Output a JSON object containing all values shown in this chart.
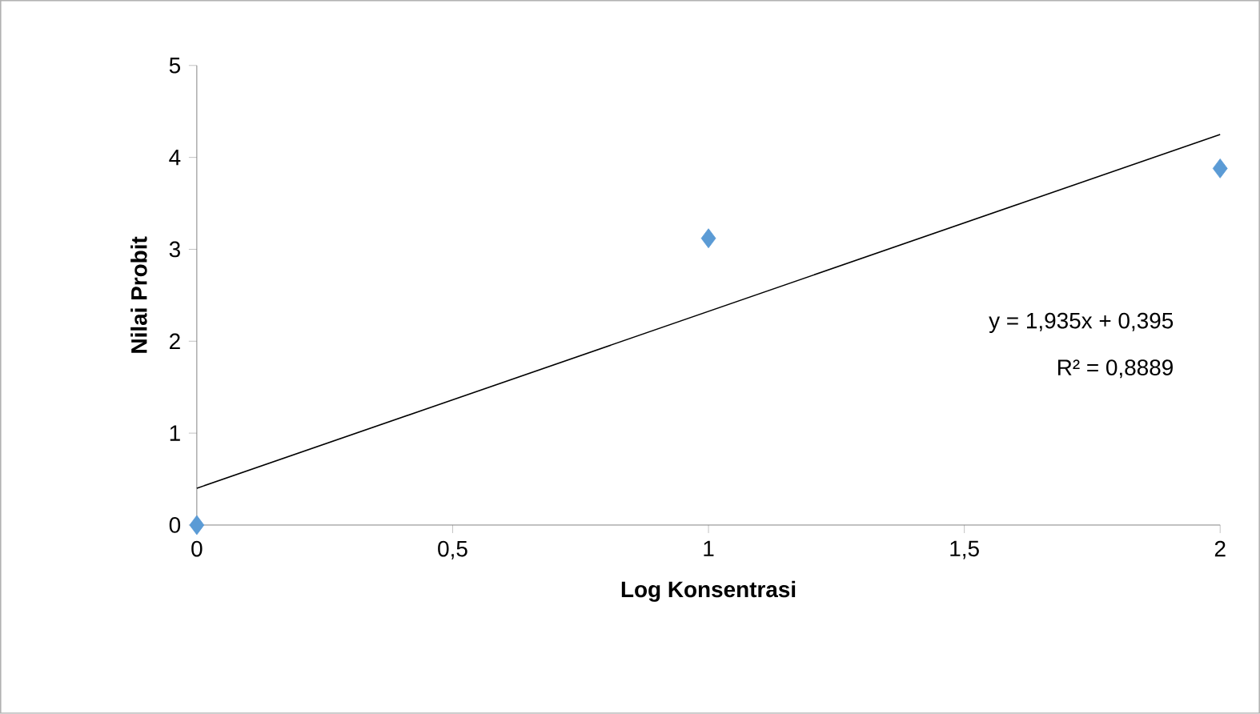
{
  "chart_data": {
    "type": "scatter",
    "xlabel": "Log Konsentrasi",
    "ylabel": "Nilai Probit",
    "xlim": [
      0,
      2
    ],
    "ylim": [
      0,
      5
    ],
    "xticks": [
      0,
      {
        "value": 0.5,
        "label": "0,5"
      },
      1,
      {
        "value": 1.5,
        "label": "1,5"
      },
      2
    ],
    "yticks": [
      0,
      1,
      2,
      3,
      4,
      5
    ],
    "series": [
      {
        "color": "#5b9bd5",
        "marker": "diamond",
        "x": [
          0,
          1,
          2
        ],
        "values": [
          0,
          3.12,
          3.88
        ]
      },
      {
        "type": "line",
        "marker": "none",
        "color": "#000000",
        "x": [
          0,
          2
        ],
        "values": [
          0.4,
          4.25
        ]
      }
    ],
    "annotations": [
      "y = 1,935x + 0,395",
      "R² = 0,8889"
    ]
  }
}
